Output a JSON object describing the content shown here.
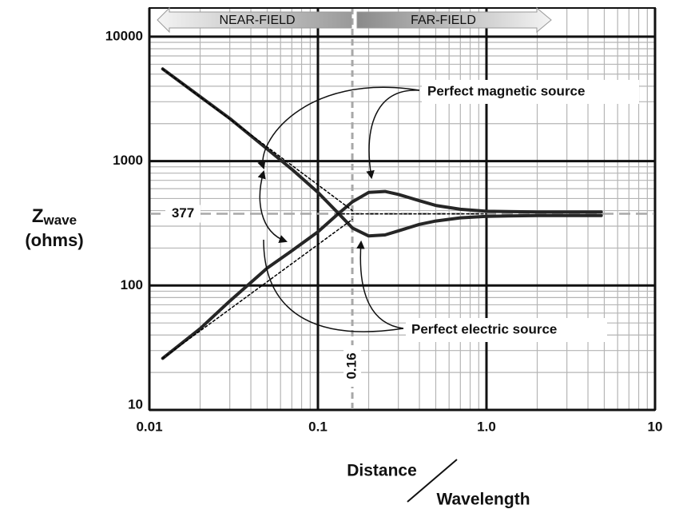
{
  "chart_data": {
    "type": "line",
    "xlabel": {
      "numerator": "Distance",
      "denominator": "Wavelength"
    },
    "ylabel": {
      "symbol": "Z",
      "subscript": "wave",
      "unit": "(ohms)"
    },
    "near_field_label": "NEAR-FIELD",
    "far_field_label": "FAR-FIELD",
    "annotations": [
      "Perfect magnetic source",
      "Perfect electric source"
    ],
    "xscale": "log",
    "yscale": "log",
    "xlim": [
      0.01,
      10
    ],
    "ylim": [
      10,
      17000
    ],
    "xticks": [
      0.01,
      0.1,
      {
        "value": 1,
        "label": "1.0"
      },
      10
    ],
    "yticks": [
      10,
      100,
      1000,
      10000
    ],
    "xminor_ticks": [
      0.02,
      0.03,
      0.04,
      0.05,
      0.06,
      0.07,
      0.08,
      0.09,
      0.2,
      0.3,
      0.4,
      0.5,
      0.6,
      0.7,
      0.8,
      0.9,
      2,
      3,
      4,
      5,
      6,
      7,
      8,
      9
    ],
    "yminor_ticks": [
      20,
      30,
      40,
      50,
      60,
      70,
      80,
      90,
      200,
      300,
      400,
      500,
      600,
      700,
      800,
      900,
      2000,
      3000,
      4000,
      5000,
      6000,
      7000,
      8000,
      9000
    ],
    "grid": true,
    "reference_lines": [
      {
        "axis": "y",
        "value": 377
      },
      {
        "axis": "x",
        "value": 0.16
      }
    ],
    "series": [
      {
        "color": "#262626",
        "width": 4,
        "dashed": false,
        "x": [
          0.012,
          0.02,
          0.03,
          0.05,
          0.07,
          0.1,
          0.13,
          0.16,
          0.2,
          0.25,
          0.3,
          0.4,
          0.5,
          0.7,
          1.0,
          2.0,
          4.8
        ],
        "values": [
          5500,
          3300,
          2200,
          1250,
          860,
          560,
          390,
          290,
          250,
          255,
          275,
          310,
          330,
          350,
          360,
          365,
          365
        ]
      },
      {
        "color": "#262626",
        "width": 4,
        "dashed": false,
        "x": [
          0.012,
          0.02,
          0.03,
          0.05,
          0.07,
          0.1,
          0.13,
          0.16,
          0.2,
          0.25,
          0.3,
          0.4,
          0.5,
          0.7,
          1.0,
          2.0,
          4.8
        ],
        "values": [
          26,
          45,
          75,
          138,
          190,
          270,
          370,
          470,
          560,
          570,
          540,
          480,
          440,
          410,
          395,
          390,
          390
        ]
      },
      {
        "color": "#000000",
        "width": 1.5,
        "dashed": true,
        "x": [
          0.012,
          0.16
        ],
        "values": [
          5500,
          400
        ]
      },
      {
        "color": "#000000",
        "width": 1.5,
        "dashed": true,
        "x": [
          0.012,
          0.16
        ],
        "values": [
          26,
          340
        ]
      },
      {
        "color": "#000000",
        "width": 1.5,
        "dashed": true,
        "x": [
          0.13,
          1.0
        ],
        "values": [
          377,
          377
        ]
      }
    ]
  }
}
